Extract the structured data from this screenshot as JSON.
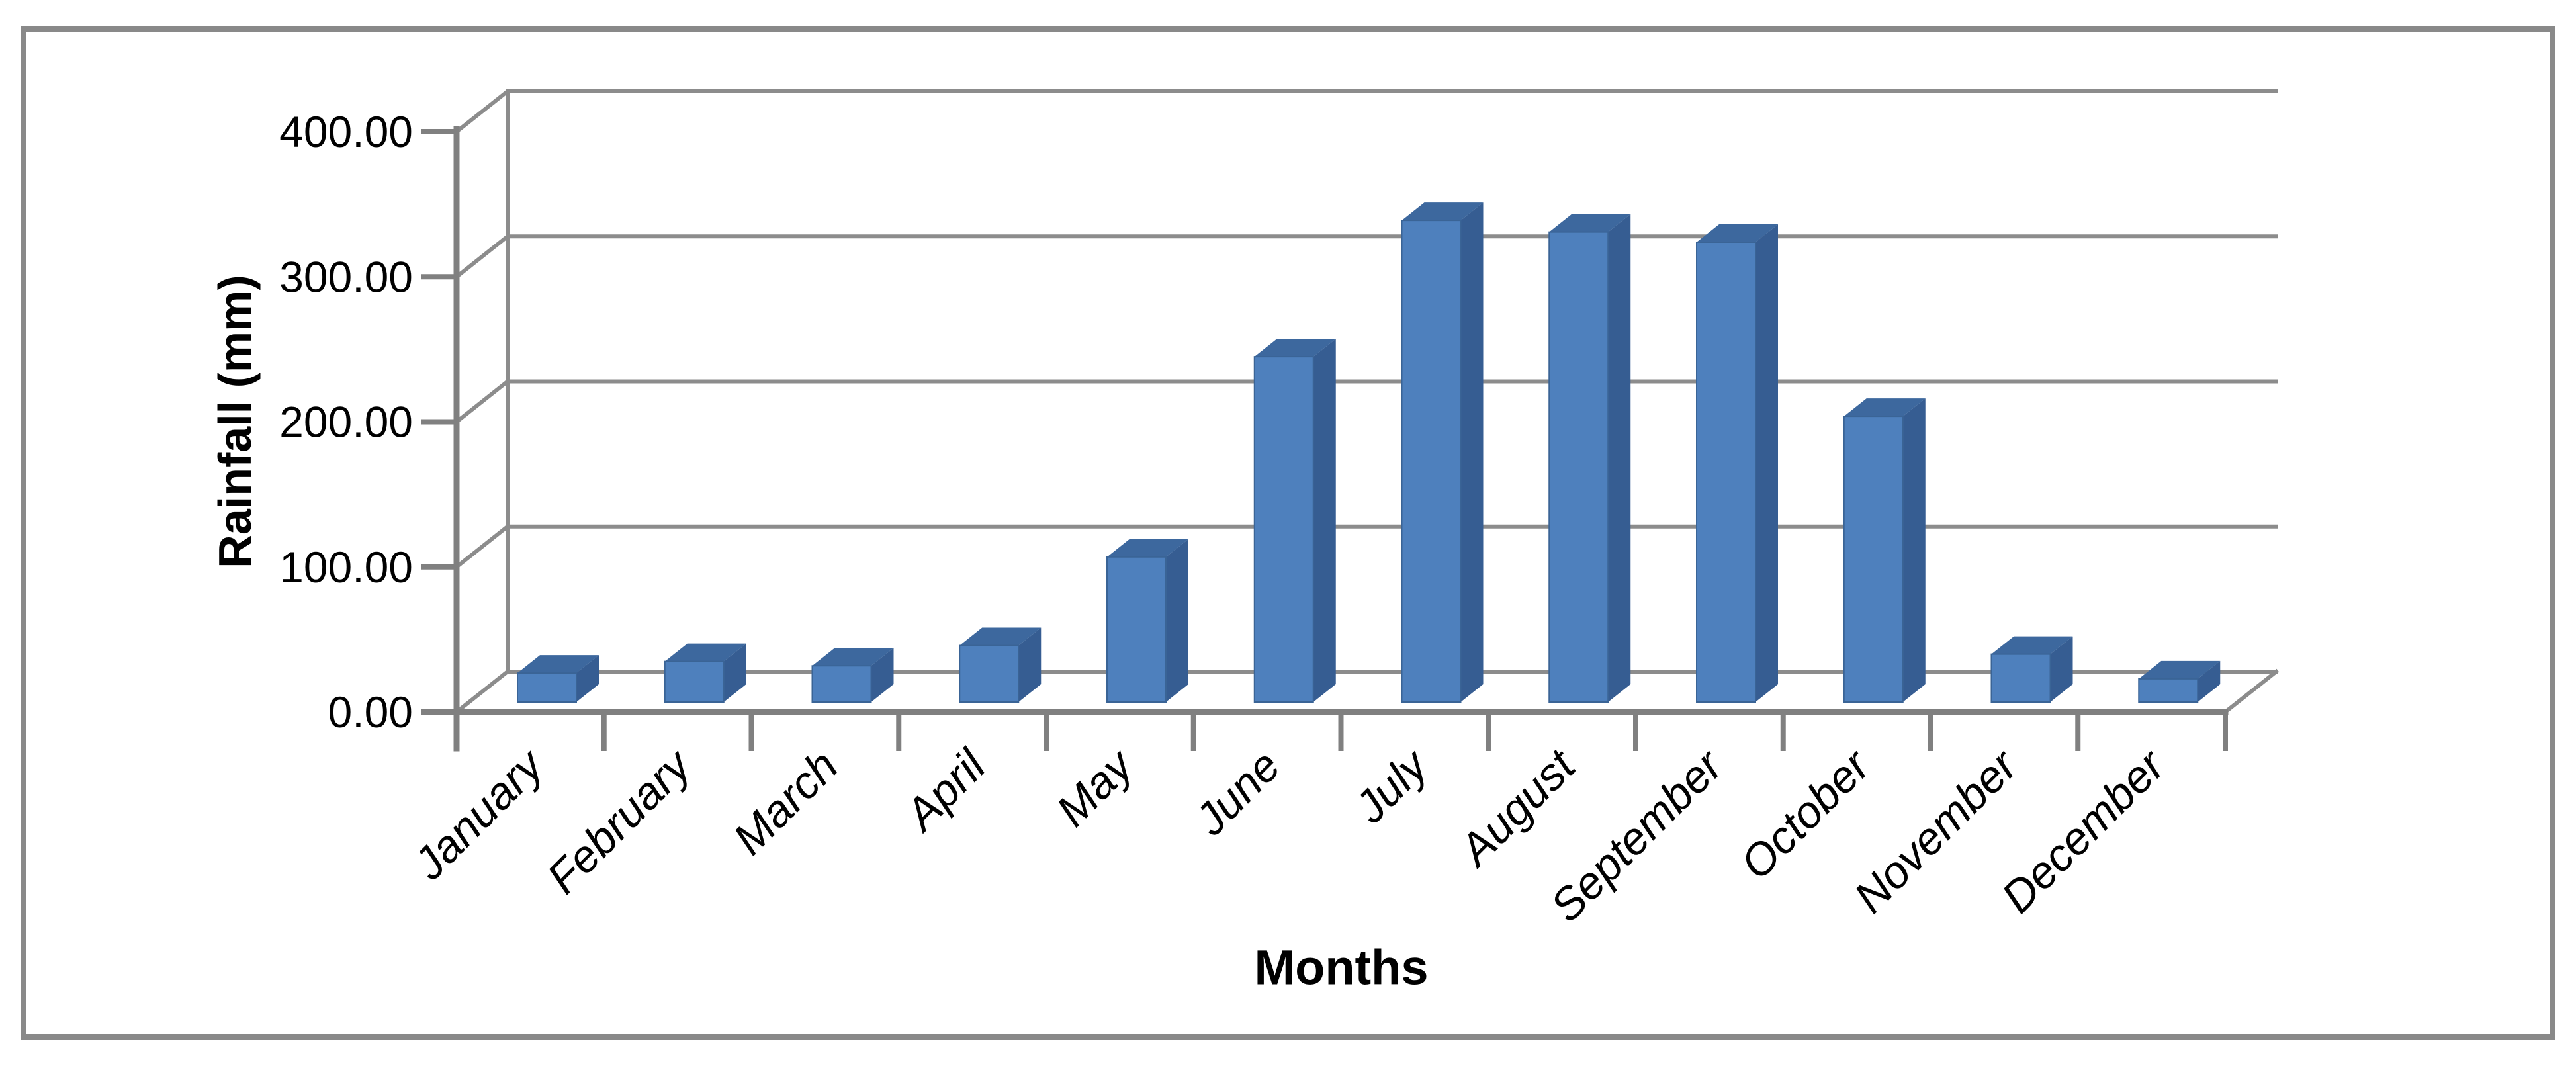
{
  "chart_data": {
    "type": "bar",
    "variant": "3d-column",
    "title": "",
    "xlabel": "Months",
    "ylabel": "Rainfall (mm)",
    "categories": [
      "January",
      "February",
      "March",
      "April",
      "May",
      "June",
      "July",
      "August",
      "September",
      "October",
      "November",
      "December"
    ],
    "series": [
      {
        "name": "Rainfall (mm)",
        "values": [
          20,
          28,
          25,
          39,
          100,
          238,
          332,
          324,
          317,
          197,
          33,
          16
        ]
      }
    ],
    "ylim": [
      0,
      400
    ],
    "ytick_step": 100,
    "ytick_labels": [
      "0.00",
      "100.00",
      "200.00",
      "300.00",
      "400.00"
    ],
    "grid": true,
    "legend_position": "none",
    "x_label_rotation_deg": -45,
    "x_label_style": "italic"
  },
  "colors": {
    "bar_front": "#4E80BD",
    "bar_front_edge": "#3A6496",
    "bar_top": "#3D689E",
    "bar_side": "#365D92",
    "grid": "#8C8C8C",
    "axis": "#808080",
    "border": "#898989",
    "background": "#FFFFFF",
    "text": "#000000"
  }
}
